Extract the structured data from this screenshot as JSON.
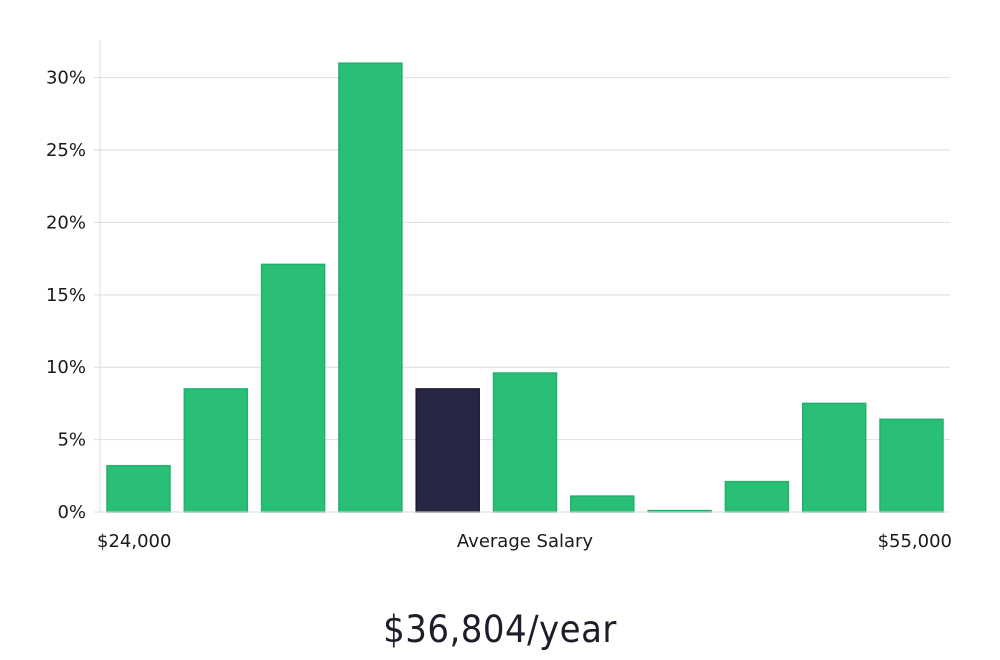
{
  "chart_data": {
    "type": "bar",
    "title": "",
    "xlabel": "Average Salary",
    "ylabel": "",
    "x_range_labels": {
      "min": "$24,000",
      "max": "$55,000"
    },
    "y_ticks": [
      "0%",
      "5%",
      "10%",
      "15%",
      "20%",
      "25%",
      "30%"
    ],
    "y_tick_values": [
      0,
      5,
      10,
      15,
      20,
      25,
      30
    ],
    "ylim": [
      0,
      32.6
    ],
    "grid": true,
    "values": [
      3.2,
      8.5,
      17.1,
      31.0,
      8.5,
      9.6,
      1.1,
      0.1,
      2.1,
      7.5,
      6.4
    ],
    "highlight_index": 4,
    "colors": {
      "bar": "#2abf77",
      "bar_border": "#22b06c",
      "highlight": "#272643",
      "highlight_border": "#1a1936",
      "grid": "#dedede",
      "axis": "#dcdcdc"
    }
  },
  "summary": {
    "average_salary": "$36,804/year"
  }
}
